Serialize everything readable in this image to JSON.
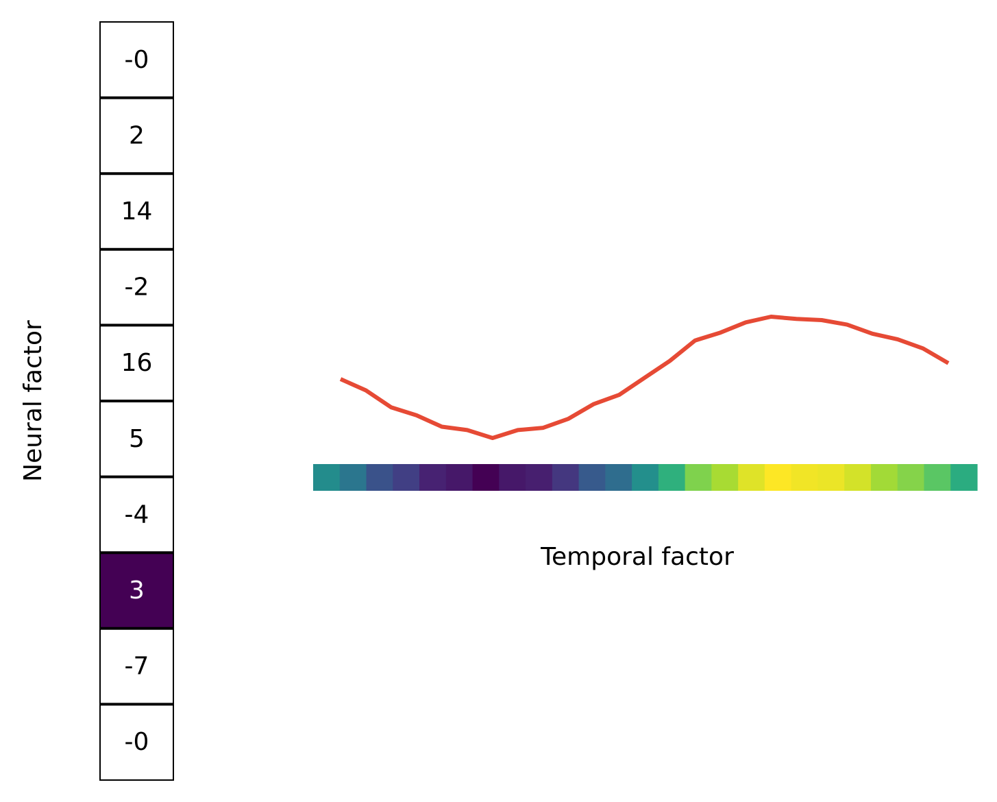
{
  "chart_data": [
    {
      "type": "heatmap",
      "orientation": "vertical",
      "ylabel": "Neural factor",
      "values": [
        0,
        2,
        14,
        -2,
        16,
        5,
        -4,
        3,
        -7,
        0
      ],
      "labels": [
        "-0",
        "2",
        "14",
        "-2",
        "16",
        "5",
        "-4",
        "3",
        "-7",
        "-0"
      ],
      "highlight_index": 7,
      "highlight_color": "#440154",
      "cell_color": "#ffffff",
      "text_color": "#000000",
      "highlight_text_color": "#ffffff",
      "border_color": "#000000"
    },
    {
      "type": "line",
      "xlabel": "Temporal factor",
      "x": [
        1,
        2,
        3,
        4,
        5,
        6,
        7,
        8,
        9,
        10,
        11,
        12,
        13,
        14,
        15,
        16,
        17,
        18,
        19,
        20,
        21,
        22,
        23,
        24,
        25
      ],
      "values": [
        0.55,
        0.45,
        0.3,
        0.23,
        0.13,
        0.1,
        0.03,
        0.1,
        0.12,
        0.2,
        0.33,
        0.41,
        0.56,
        0.71,
        0.89,
        0.96,
        1.05,
        1.1,
        1.08,
        1.07,
        1.03,
        0.95,
        0.9,
        0.82,
        0.69
      ],
      "line_color": "#e64a35",
      "colormap": "viridis"
    }
  ]
}
